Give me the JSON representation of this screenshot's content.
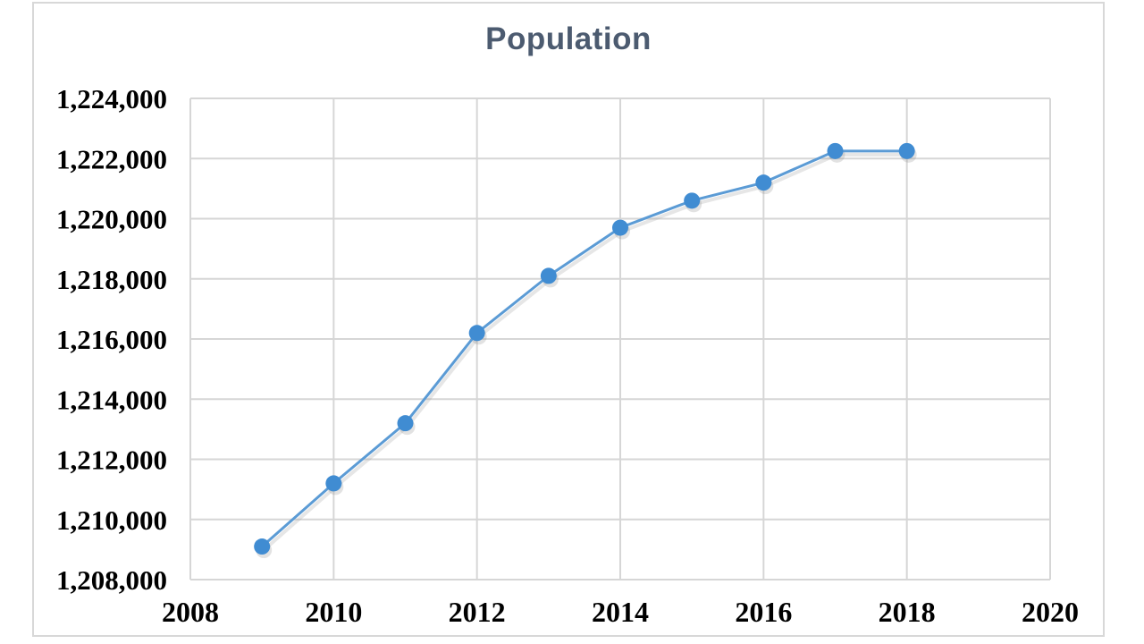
{
  "chart_data": {
    "type": "line",
    "title": "Population",
    "x": [
      2009,
      2010,
      2011,
      2012,
      2013,
      2014,
      2015,
      2016,
      2017,
      2018
    ],
    "series": [
      {
        "name": "Population",
        "values": [
          1209100,
          1211200,
          1213200,
          1216200,
          1218100,
          1219700,
          1220600,
          1221200,
          1222250,
          1222250
        ]
      }
    ],
    "xlabel": "",
    "ylabel": "",
    "xlim": [
      2008,
      2020
    ],
    "ylim": [
      1208000,
      1224000
    ],
    "x_ticks": [
      "2008",
      "2010",
      "2012",
      "2014",
      "2016",
      "2018",
      "2020"
    ],
    "y_ticks": [
      "1,208,000",
      "1,210,000",
      "1,212,000",
      "1,214,000",
      "1,216,000",
      "1,218,000",
      "1,220,000",
      "1,222,000",
      "1,224,000"
    ],
    "grid": true,
    "legend_position": "none",
    "line_color": "#5b9bd5",
    "marker_color": "#408cd2",
    "gridline_color": "#d6d6d6",
    "frame_color": "#d8d8d8",
    "title_color": "#4c5b70",
    "axis_label_color": "#000000"
  }
}
